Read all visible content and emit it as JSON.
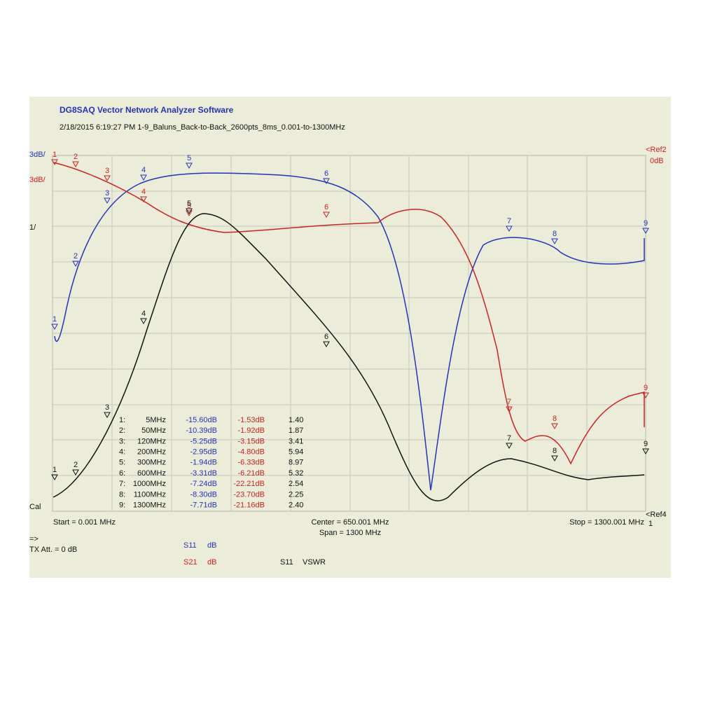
{
  "header": {
    "title": "DG8SAQ Vector Network Analyzer Software",
    "subtitle": "2/18/2015   6:19:27 PM   1-9_Baluns_Back-to-Back_2600pts_8ms_0.001-to-1300MHz"
  },
  "scale_labels": {
    "s11_scale": "3dB/",
    "s21_scale": "3dB/",
    "vswr_scale": "1/",
    "cal": "Cal",
    "ref2": "<Ref2",
    "ref2_value": "0dB",
    "ref4": "<Ref4",
    "ref4_value": "1"
  },
  "footer": {
    "start": "Start = 0.001 MHz",
    "center": "Center = 650.001 MHz",
    "span": "Span = 1300 MHz",
    "stop": "Stop = 1300.001 MHz",
    "arrow": "=>",
    "tx_att": "TX Att.  = 0 dB"
  },
  "legend": [
    {
      "trace": "S11",
      "unit": "dB"
    },
    {
      "trace": "S21",
      "unit": "dB"
    },
    {
      "trace": "S11",
      "unit": "VSWR"
    }
  ],
  "markers": [
    {
      "tag": "1",
      "num": "1:",
      "freq": "5MHz",
      "s11": "-15.60dB",
      "s21": "-1.53dB",
      "vswr": "1.40"
    },
    {
      "tag": "2",
      "num": "2:",
      "freq": "50MHz",
      "s11": "-10.39dB",
      "s21": "-1.92dB",
      "vswr": "1.87"
    },
    {
      "tag": "3",
      "num": "3:",
      "freq": "120MHz",
      "s11": "-5.25dB",
      "s21": "-3.15dB",
      "vswr": "3.41"
    },
    {
      "tag": "4",
      "num": "4:",
      "freq": "200MHz",
      "s11": "-2.95dB",
      "s21": "-4.80dB",
      "vswr": "5.94"
    },
    {
      "tag": "5",
      "num": "5:",
      "freq": "300MHz",
      "s11": "-1.94dB",
      "s21": "-6.33dB",
      "vswr": "8.97"
    },
    {
      "tag": "6",
      "num": "6:",
      "freq": "600MHz",
      "s11": "-3.31dB",
      "s21": "-6.21dB",
      "vswr": "5.32"
    },
    {
      "tag": "7",
      "num": "7:",
      "freq": "1000MHz",
      "s11": "-7.24dB",
      "s21": "-22.21dB",
      "vswr": "2.54"
    },
    {
      "tag": "8",
      "num": "8:",
      "freq": "1100MHz",
      "s11": "-8.30dB",
      "s21": "-23.70dB",
      "vswr": "2.25"
    },
    {
      "tag": "9",
      "num": "9:",
      "freq": "1300MHz",
      "s11": "-7.71dB",
      "s21": "-21.16dB",
      "vswr": "2.40"
    }
  ]
}
